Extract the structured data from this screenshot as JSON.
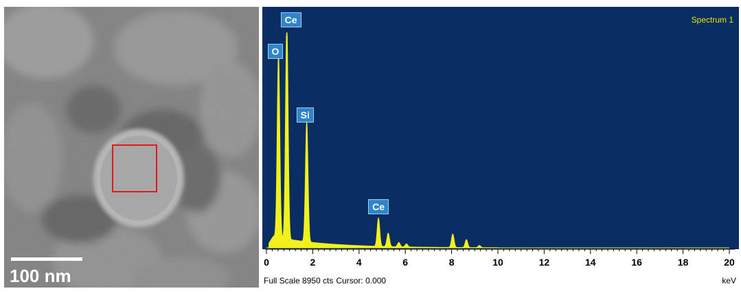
{
  "sem_image": {
    "scale_bar_label": "100 nm",
    "selection_box_color": "#e01a1a"
  },
  "spectrum_panel": {
    "label": "Spectrum 1",
    "background_color": "#0a2d63",
    "trace_color": "#f2f21a",
    "footer": {
      "full_scale_label": "Full Scale 8950 cts",
      "cursor_label": "Cursor: 0.000",
      "unit": "keV"
    }
  },
  "chart_data": {
    "type": "area",
    "xlabel": "keV",
    "ylabel": "",
    "xlim": [
      0,
      20
    ],
    "ylim": [
      0,
      8950
    ],
    "x_ticks": [
      0,
      2,
      4,
      6,
      8,
      10,
      12,
      14,
      16,
      18,
      20
    ],
    "x_tick_labels": [
      "0",
      "2",
      "4",
      "6",
      "8",
      "10",
      "12",
      "14",
      "16",
      "18",
      "20"
    ],
    "peaks": [
      {
        "label": "O",
        "energy_kev": 0.52,
        "counts": 7650
      },
      {
        "label": "Ce",
        "energy_kev": 0.88,
        "counts": 8950
      },
      {
        "label": "Si",
        "energy_kev": 1.74,
        "counts": 5000
      },
      {
        "label": "Ce",
        "energy_kev": 4.84,
        "counts": 1180
      },
      {
        "label": "",
        "energy_kev": 5.26,
        "counts": 560
      },
      {
        "label": "",
        "energy_kev": 5.72,
        "counts": 180
      },
      {
        "label": "",
        "energy_kev": 6.05,
        "counts": 130
      },
      {
        "label": "",
        "energy_kev": 8.05,
        "counts": 560
      },
      {
        "label": "",
        "energy_kev": 8.64,
        "counts": 330
      },
      {
        "label": "",
        "energy_kev": 9.2,
        "counts": 90
      }
    ]
  }
}
